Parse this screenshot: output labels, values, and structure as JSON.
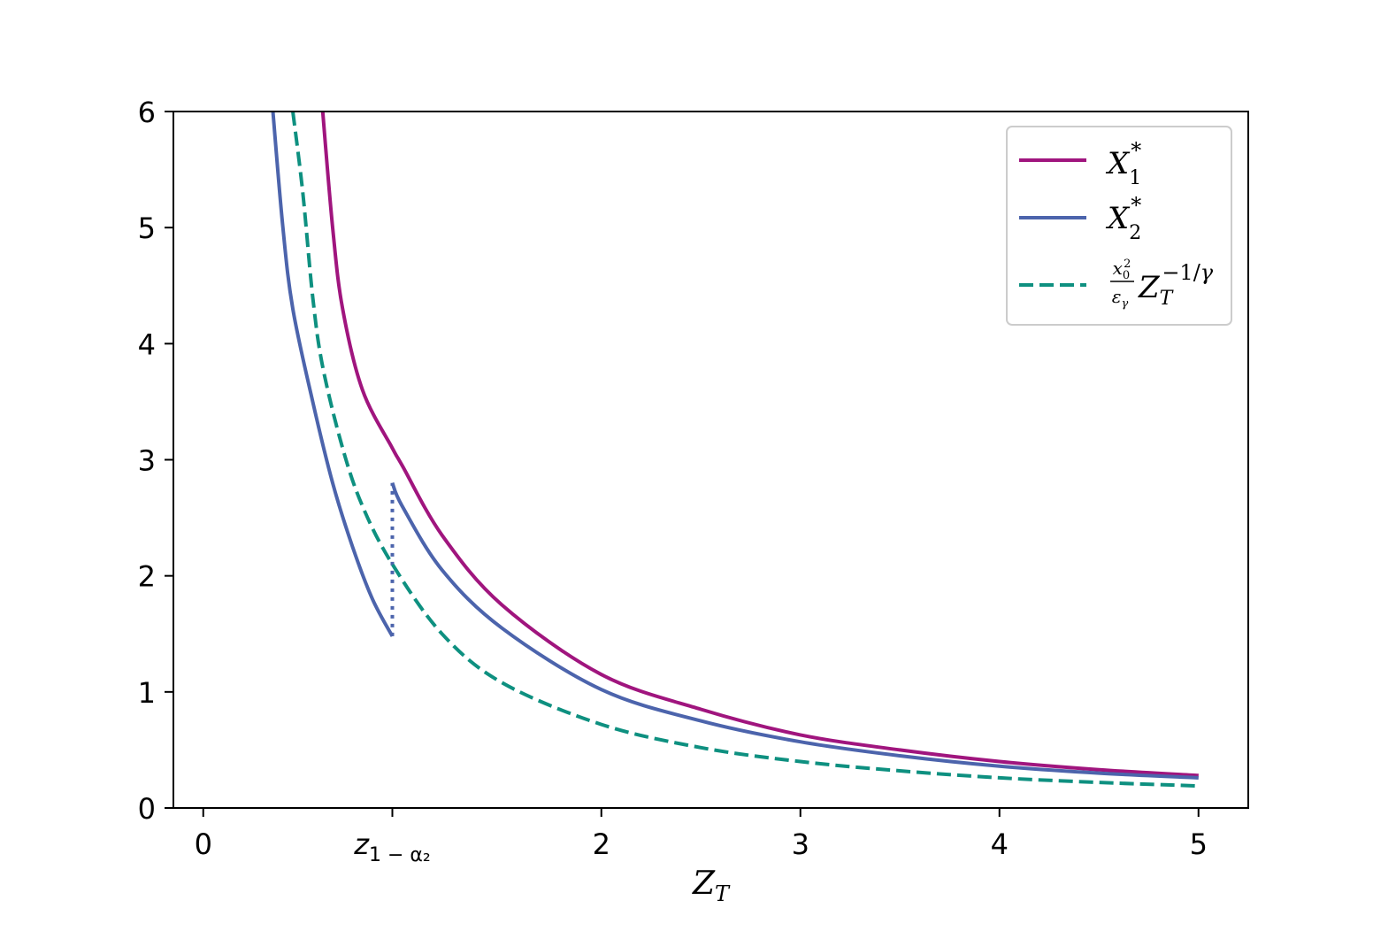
{
  "chart_data": {
    "type": "line",
    "title": "",
    "xlabel": "Z",
    "xlabel_sub": "T",
    "ylabel": "",
    "xlim": [
      -0.15,
      5.25
    ],
    "ylim": [
      0,
      6
    ],
    "grid": false,
    "legend_position": "top-right",
    "x_ticks": [
      {
        "value": 0,
        "label": "0"
      },
      {
        "value": 0.95,
        "label": "z",
        "label_sub": "1 − α₂"
      },
      {
        "value": 2,
        "label": "2"
      },
      {
        "value": 3,
        "label": "3"
      },
      {
        "value": 4,
        "label": "4"
      },
      {
        "value": 5,
        "label": "5"
      }
    ],
    "y_ticks": [
      {
        "value": 0,
        "label": "0"
      },
      {
        "value": 1,
        "label": "1"
      },
      {
        "value": 2,
        "label": "2"
      },
      {
        "value": 3,
        "label": "3"
      },
      {
        "value": 4,
        "label": "4"
      },
      {
        "value": 5,
        "label": "5"
      },
      {
        "value": 6,
        "label": "6"
      }
    ],
    "series": [
      {
        "name": "X₁*",
        "color": "#a0157e",
        "style": "solid",
        "segments": [
          [
            [
              0.6,
              6.0
            ],
            [
              0.65,
              5.0
            ],
            [
              0.7,
              4.3
            ],
            [
              0.8,
              3.6
            ],
            [
              0.95,
              3.1
            ],
            [
              1.0,
              2.95
            ],
            [
              1.2,
              2.35
            ],
            [
              1.5,
              1.75
            ],
            [
              2.0,
              1.15
            ],
            [
              2.5,
              0.85
            ],
            [
              3.0,
              0.63
            ],
            [
              3.5,
              0.5
            ],
            [
              4.0,
              0.4
            ],
            [
              4.5,
              0.33
            ],
            [
              5.0,
              0.28
            ]
          ]
        ]
      },
      {
        "name": "X₂*",
        "color": "#4c64ac",
        "style": "solid",
        "segments": [
          [
            [
              0.35,
              6.0
            ],
            [
              0.4,
              5.0
            ],
            [
              0.45,
              4.3
            ],
            [
              0.55,
              3.5
            ],
            [
              0.65,
              2.8
            ],
            [
              0.75,
              2.25
            ],
            [
              0.85,
              1.8
            ],
            [
              0.95,
              1.48
            ]
          ],
          [
            [
              0.95,
              2.8
            ],
            [
              1.0,
              2.6
            ],
            [
              1.2,
              2.05
            ],
            [
              1.5,
              1.55
            ],
            [
              2.0,
              1.02
            ],
            [
              2.5,
              0.75
            ],
            [
              3.0,
              0.57
            ],
            [
              3.5,
              0.45
            ],
            [
              4.0,
              0.36
            ],
            [
              4.5,
              0.3
            ],
            [
              5.0,
              0.26
            ]
          ]
        ]
      },
      {
        "name": "x₀²/ε_γ Z_T^(−1/γ)",
        "color": "#0e9080",
        "style": "dashed",
        "segments": [
          [
            [
              0.45,
              6.0
            ],
            [
              0.5,
              5.3
            ],
            [
              0.55,
              4.4
            ],
            [
              0.6,
              3.8
            ],
            [
              0.7,
              3.1
            ],
            [
              0.8,
              2.6
            ],
            [
              0.95,
              2.1
            ],
            [
              1.2,
              1.5
            ],
            [
              1.5,
              1.08
            ],
            [
              2.0,
              0.72
            ],
            [
              2.5,
              0.52
            ],
            [
              3.0,
              0.4
            ],
            [
              3.5,
              0.32
            ],
            [
              4.0,
              0.26
            ],
            [
              4.5,
              0.22
            ],
            [
              5.0,
              0.19
            ]
          ]
        ]
      }
    ],
    "annotations": [
      {
        "type": "vertical-dotted",
        "x": 0.95,
        "y_from": 1.48,
        "y_to": 2.8,
        "color": "#4c64ac"
      }
    ]
  }
}
